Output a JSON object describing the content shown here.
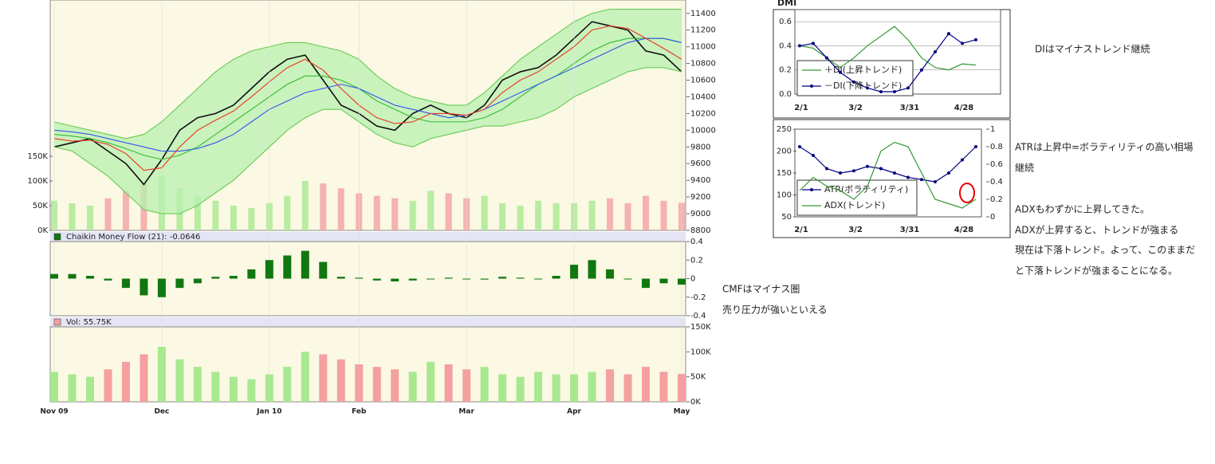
{
  "chart_data": [
    {
      "type": "line",
      "categories": [
        "Nov 09",
        null,
        null,
        null,
        null,
        null,
        "Dec",
        null,
        null,
        null,
        null,
        null,
        "Jan 10",
        null,
        null,
        null,
        null,
        "Feb",
        null,
        null,
        null,
        null,
        null,
        "Mar",
        null,
        null,
        null,
        null,
        null,
        "Apr",
        null,
        null,
        null,
        null,
        null,
        "May"
      ],
      "ylim": [
        8800,
        11560
      ],
      "yticks": [
        8800,
        9000,
        9200,
        9400,
        9600,
        9800,
        10000,
        10200,
        10400,
        10600,
        10800,
        11000,
        11200,
        11400
      ],
      "y2lim": [
        0,
        466000
      ],
      "y2ticks": [
        {
          "value": 0,
          "label": "0K"
        },
        {
          "value": 50000,
          "label": "50K"
        },
        {
          "value": 100000,
          "label": "100K"
        },
        {
          "value": 150000,
          "label": "150K"
        }
      ],
      "band_color": "#b8f0b0",
      "series": [
        {
          "color": "#111111",
          "values": [
            9800,
            9850,
            9900,
            9750,
            9600,
            9350,
            9650,
            10000,
            10150,
            10200,
            10300,
            10500,
            10700,
            10850,
            10900,
            10600,
            10300,
            10200,
            10050,
            10000,
            10200,
            10300,
            10200,
            10150,
            10300,
            10600,
            10700,
            10750,
            10900,
            11100,
            11300,
            11250,
            11200,
            10950,
            10900,
            10700
          ]
        },
        {
          "color": "#66cc55",
          "values": [
            10100,
            10050,
            10000,
            9950,
            9900,
            9950,
            10100,
            10300,
            10500,
            10700,
            10850,
            10950,
            11000,
            11050,
            11050,
            11000,
            10950,
            10850,
            10650,
            10500,
            10400,
            10350,
            10300,
            10300,
            10450,
            10650,
            10850,
            11000,
            11150,
            11300,
            11400,
            11450,
            11450,
            11450,
            11450,
            11450
          ]
        },
        {
          "color": "#66cc55",
          "values": [
            9800,
            9750,
            9600,
            9450,
            9250,
            9050,
            9000,
            9000,
            9100,
            9250,
            9400,
            9600,
            9800,
            10000,
            10150,
            10250,
            10250,
            10100,
            9950,
            9850,
            9800,
            9900,
            9950,
            10000,
            10050,
            10050,
            10100,
            10150,
            10250,
            10400,
            10500,
            10600,
            10700,
            10750,
            10750,
            10700
          ]
        },
        {
          "color": "#33bb33",
          "values": [
            9950,
            9930,
            9900,
            9850,
            9780,
            9700,
            9650,
            9700,
            9800,
            9950,
            10100,
            10250,
            10400,
            10550,
            10650,
            10650,
            10600,
            10500,
            10350,
            10250,
            10150,
            10100,
            10100,
            10100,
            10150,
            10250,
            10400,
            10550,
            10650,
            10800,
            10950,
            11050,
            11100,
            11100,
            11100,
            11050
          ]
        },
        {
          "color": "#3355ee",
          "values": [
            10000,
            9980,
            9950,
            9900,
            9850,
            9800,
            9750,
            9750,
            9780,
            9850,
            9950,
            10100,
            10250,
            10350,
            10450,
            10500,
            10550,
            10500,
            10400,
            10300,
            10250,
            10200,
            10150,
            10180,
            10250,
            10350,
            10450,
            10550,
            10650,
            10750,
            10850,
            10950,
            11050,
            11100,
            11100,
            11050
          ]
        },
        {
          "color": "#ee3322",
          "values": [
            9900,
            9870,
            9880,
            9830,
            9720,
            9520,
            9550,
            9800,
            10000,
            10120,
            10230,
            10400,
            10580,
            10750,
            10850,
            10720,
            10500,
            10300,
            10150,
            10080,
            10100,
            10200,
            10200,
            10180,
            10250,
            10450,
            10600,
            10700,
            10850,
            11000,
            11200,
            11250,
            11220,
            11100,
            10980,
            10850
          ]
        },
        {
          "type": "bar",
          "axis": "y2",
          "color": "#a8e890",
          "down_color": "#f4a0a0",
          "values": [
            60000,
            55000,
            50000,
            65000,
            80000,
            95000,
            110000,
            85000,
            70000,
            60000,
            50000,
            45000,
            55000,
            70000,
            100000,
            95000,
            85000,
            75000,
            70000,
            65000,
            60000,
            80000,
            75000,
            65000,
            70000,
            55000,
            50000,
            60000,
            55000,
            55000,
            60000,
            65000,
            55000,
            70000,
            60000,
            55750
          ]
        }
      ]
    },
    {
      "type": "bar",
      "title": "Chaikin Money Flow (21): -0.0646",
      "color": "#117711",
      "legend_color": "#117711",
      "values": [
        0.05,
        0.05,
        0.03,
        -0.02,
        -0.1,
        -0.18,
        -0.2,
        -0.1,
        -0.05,
        0.02,
        0.03,
        0.1,
        0.2,
        0.25,
        0.3,
        0.18,
        0.02,
        0.01,
        -0.02,
        -0.03,
        -0.02,
        0,
        0.01,
        0,
        -0.01,
        0.02,
        0.01,
        0,
        0.03,
        0.15,
        0.2,
        0.1,
        0,
        -0.1,
        -0.05,
        -0.0646
      ],
      "ylim": [
        -0.4,
        0.4
      ],
      "yticks": [
        -0.4,
        -0.2,
        0,
        0.2,
        0.4
      ]
    },
    {
      "type": "bar",
      "title": "Vol: 55.75K",
      "color": "#a8e890",
      "down_color": "#f4a0a0",
      "legend_color": "#f4a0a0",
      "values": [
        60000,
        55000,
        50000,
        65000,
        80000,
        95000,
        110000,
        85000,
        70000,
        60000,
        50000,
        45000,
        55000,
        70000,
        100000,
        95000,
        85000,
        75000,
        70000,
        65000,
        60000,
        80000,
        75000,
        65000,
        70000,
        55000,
        50000,
        60000,
        55000,
        55000,
        60000,
        65000,
        55000,
        70000,
        60000,
        55750
      ],
      "ylim": [
        0,
        150000
      ],
      "yticks": [
        {
          "value": 0,
          "label": "0K"
        },
        {
          "value": 50000,
          "label": "50K"
        },
        {
          "value": 100000,
          "label": "100K"
        },
        {
          "value": 150000,
          "label": "150K"
        }
      ]
    },
    {
      "type": "line",
      "title": "DMI",
      "categories": [
        "2/1",
        null,
        null,
        null,
        "3/2",
        null,
        null,
        null,
        "3/31",
        null,
        null,
        null,
        "4/28",
        null
      ],
      "ylim": [
        0,
        0.7
      ],
      "yticks": [
        {
          "value": 0,
          "label": "0.0"
        },
        0.2,
        0.4,
        0.6
      ],
      "grid": true,
      "series": [
        {
          "name": "＋DI(上昇トレンド)",
          "color": "#339933",
          "values": [
            0.4,
            0.38,
            0.3,
            0.22,
            0.3,
            0.4,
            0.48,
            0.56,
            0.45,
            0.3,
            0.22,
            0.2,
            0.25,
            0.24
          ]
        },
        {
          "name": "－DI(下降トレンド)",
          "color": "#000080",
          "markers": true,
          "values": [
            0.4,
            0.42,
            0.3,
            0.18,
            0.1,
            0.05,
            0.02,
            0.02,
            0.05,
            0.2,
            0.35,
            0.5,
            0.42,
            0.45
          ]
        }
      ]
    },
    {
      "type": "line",
      "categories": [
        "2/1",
        null,
        null,
        null,
        "3/2",
        null,
        null,
        null,
        "3/31",
        null,
        null,
        null,
        "4/28",
        null
      ],
      "ylim": [
        50,
        250
      ],
      "yticks": [
        50,
        100,
        150,
        200,
        250
      ],
      "y2lim": [
        0,
        1
      ],
      "y2ticks": [
        0,
        0.2,
        0.4,
        0.6,
        0.8,
        1
      ],
      "series": [
        {
          "name": "ATR(ボラティリティ)",
          "color": "#000080",
          "markers": true,
          "values": [
            210,
            190,
            160,
            150,
            155,
            165,
            160,
            150,
            140,
            135,
            130,
            150,
            180,
            210
          ]
        },
        {
          "name": "ADX(トレンド)",
          "color": "#339933",
          "axis": "y2",
          "values": [
            0.3,
            0.45,
            0.35,
            0.3,
            0.2,
            0.35,
            0.75,
            0.85,
            0.8,
            0.5,
            0.2,
            0.15,
            0.1,
            0.2
          ]
        }
      ]
    }
  ],
  "notes": [
    "DIはマイナストレンド継続",
    "ATRは上昇中=ボラティリティの高い相場",
    "継続",
    "ADXもわずかに上昇してきた。",
    "ADXが上昇すると、トレンドが強まる",
    "現在は下落トレンド。よって、このままだ",
    "と下落トレンドが強まることになる。",
    "CMFはマイナス圏",
    "売り圧力が強いといえる"
  ]
}
